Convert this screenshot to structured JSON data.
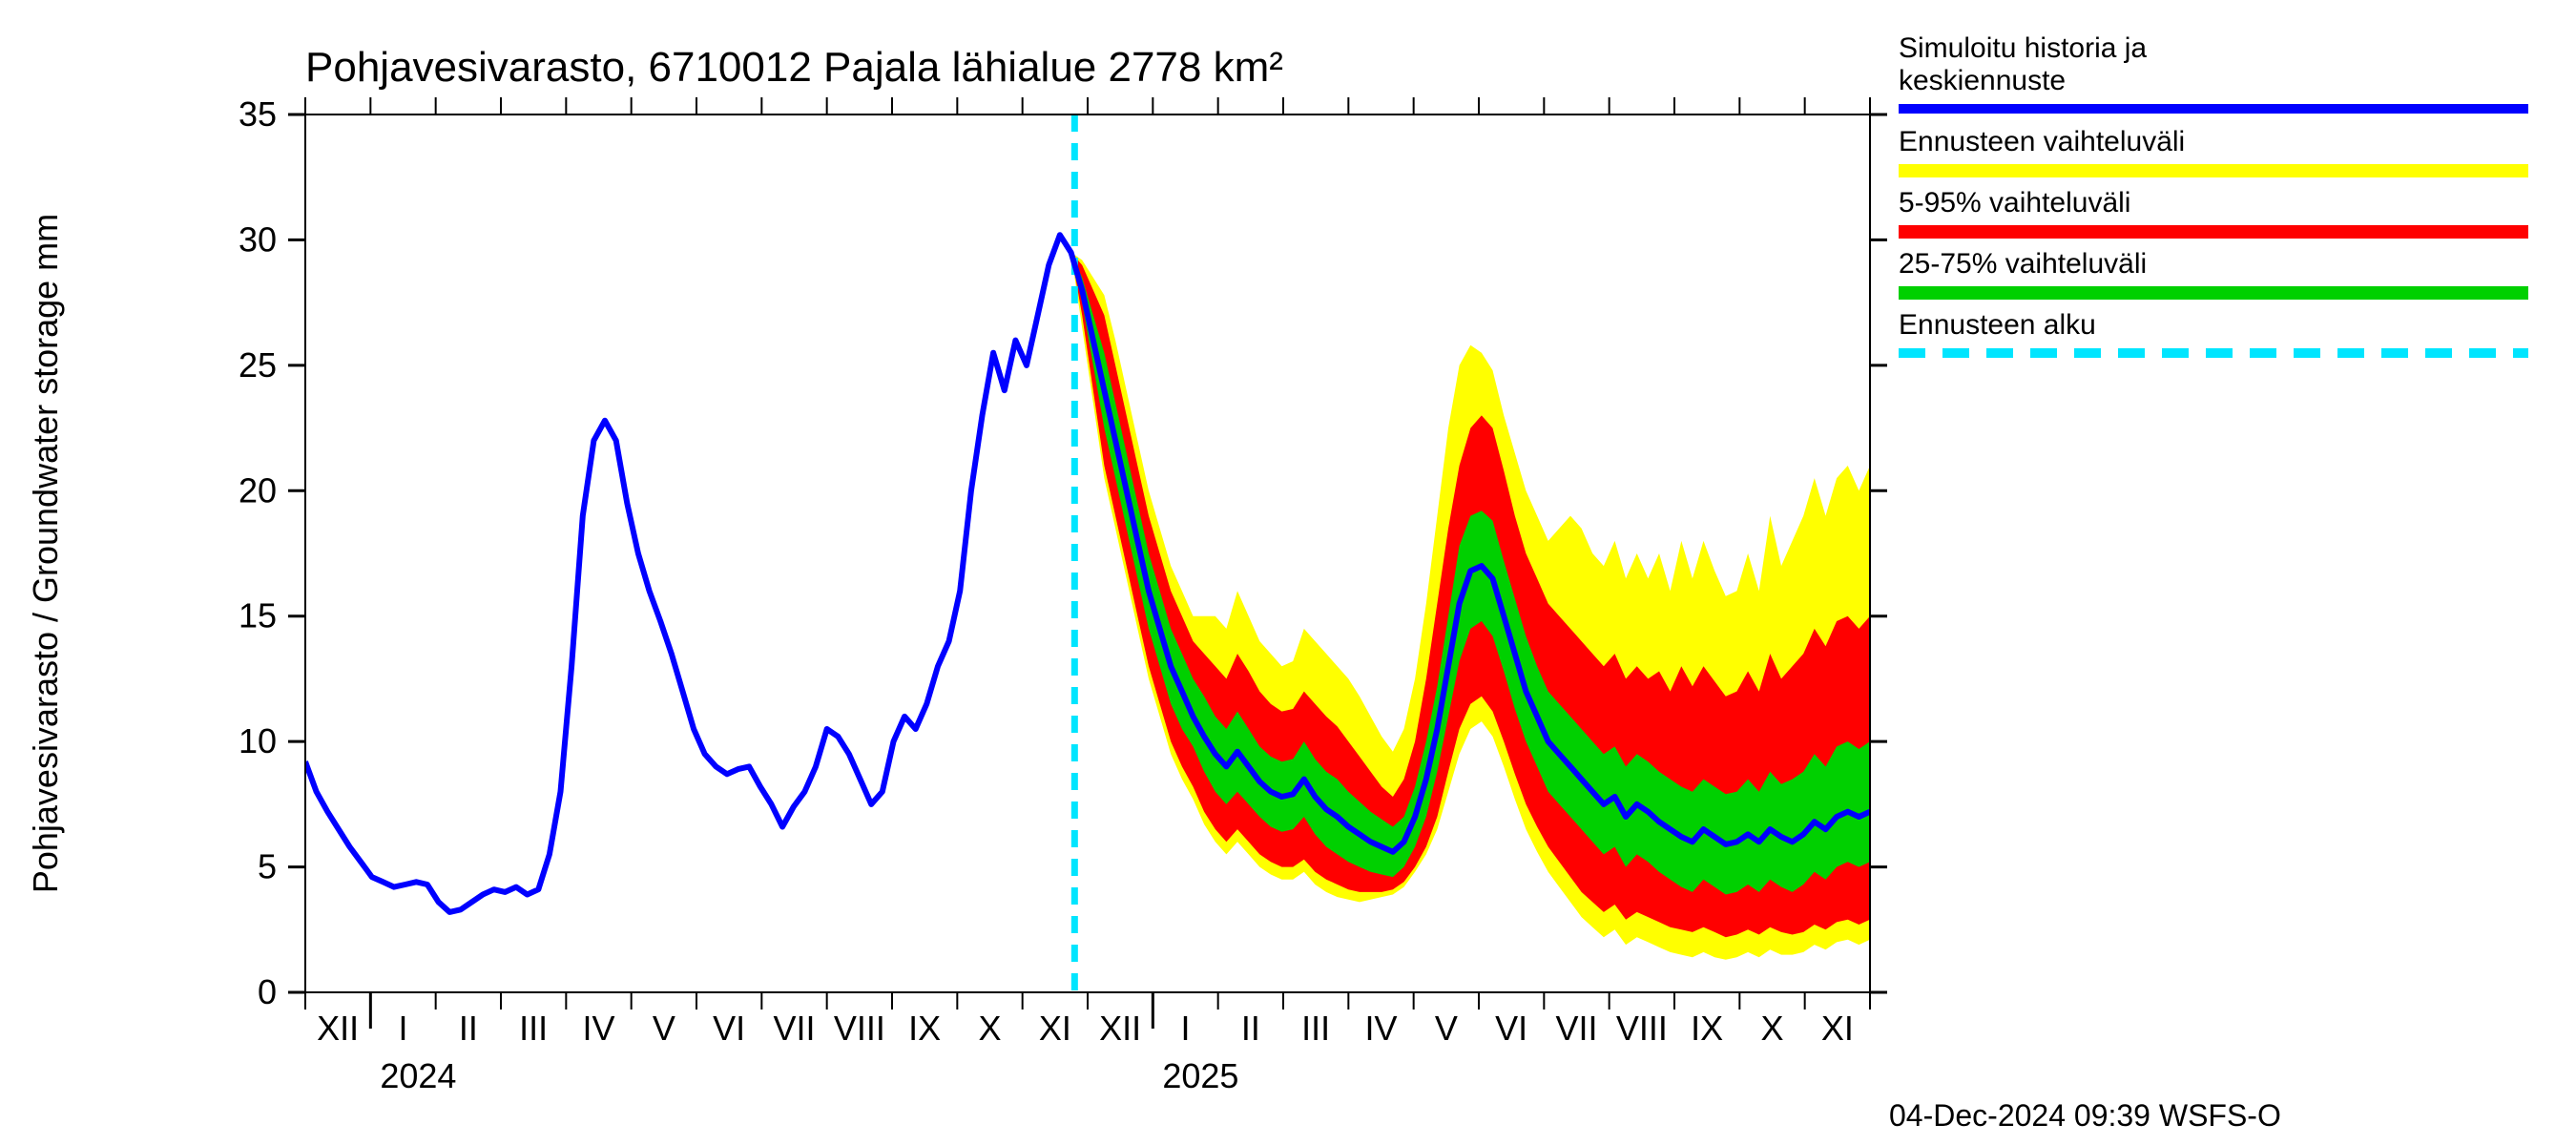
{
  "chart": {
    "type": "line-with-uncertainty-bands",
    "title": "Pohjavesivarasto, 6710012 Pajala lähialue 2778 km²",
    "title_fontsize": 44,
    "y_axis_label": "Pohjavesivarasto / Groundwater storage    mm",
    "y_axis_label_fontsize": 36,
    "background_color": "#ffffff",
    "axis_color": "#000000",
    "ylim": [
      0,
      35
    ],
    "ytick_step": 5,
    "ytick_labels": [
      "0",
      "5",
      "10",
      "15",
      "20",
      "25",
      "30",
      "35"
    ],
    "x_ticks": [
      "XII",
      "I",
      "II",
      "III",
      "IV",
      "V",
      "VI",
      "VII",
      "VIII",
      "IX",
      "X",
      "XI",
      "XII",
      "I",
      "II",
      "III",
      "IV",
      "V",
      "VI",
      "VII",
      "VIII",
      "IX",
      "X",
      "XI"
    ],
    "x_year_labels": [
      {
        "pos_index": 1,
        "text": "2024"
      },
      {
        "pos_index": 13,
        "text": "2025"
      }
    ],
    "colors": {
      "mean_line": "#0000ff",
      "full_range": "#ffff00",
      "p5_95": "#ff0000",
      "p25_75": "#00d000",
      "forecast_start": "#00e5ff"
    },
    "line_width_mean": 6,
    "forecast_start_index": 11.8,
    "forecast_dash": "18 12",
    "forecast_line_width": 7,
    "mean": [
      9.2,
      8.0,
      7.2,
      6.5,
      5.8,
      5.2,
      4.6,
      4.4,
      4.2,
      4.3,
      4.4,
      4.3,
      3.6,
      3.2,
      3.3,
      3.6,
      3.9,
      4.1,
      4.0,
      4.2,
      3.9,
      4.1,
      5.5,
      8.0,
      13.0,
      19.0,
      22.0,
      22.8,
      22.0,
      19.5,
      17.5,
      16.0,
      14.8,
      13.5,
      12.0,
      10.5,
      9.5,
      9.0,
      8.7,
      8.9,
      9.0,
      8.2,
      7.5,
      6.6,
      7.4,
      8.0,
      9.0,
      10.5,
      10.2,
      9.5,
      8.5,
      7.5,
      8.0,
      10.0,
      11.0,
      10.5,
      11.5,
      13.0,
      14.0,
      16.0,
      20.0,
      23.0,
      25.5,
      24.0,
      26.0,
      25.0,
      27.0,
      29.0,
      30.2,
      29.5,
      28.0,
      26.0,
      24.0,
      22.0,
      20.0,
      18.0,
      16.0,
      14.5,
      13.0,
      12.0,
      11.0,
      10.2,
      9.5,
      9.0,
      9.6,
      9.0,
      8.4,
      8.0,
      7.8,
      7.9,
      8.5,
      7.8,
      7.3,
      7.0,
      6.6,
      6.3,
      6.0,
      5.8,
      5.6,
      6.0,
      7.0,
      8.5,
      10.5,
      13.0,
      15.5,
      16.8,
      17.0,
      16.5,
      15.0,
      13.5,
      12.0,
      11.0,
      10.0,
      9.5,
      9.0,
      8.5,
      8.0,
      7.5,
      7.8,
      7.0,
      7.5,
      7.2,
      6.8,
      6.5,
      6.2,
      6.0,
      6.5,
      6.2,
      5.9,
      6.0,
      6.3,
      6.0,
      6.5,
      6.2,
      6.0,
      6.3,
      6.8,
      6.5,
      7.0,
      7.2,
      7.0,
      7.2
    ],
    "p25": [
      9.2,
      8.0,
      7.2,
      6.5,
      5.8,
      5.2,
      4.6,
      4.4,
      4.2,
      4.3,
      4.4,
      4.3,
      3.6,
      3.2,
      3.3,
      3.6,
      3.9,
      4.1,
      4.0,
      4.2,
      3.9,
      4.1,
      5.5,
      8.0,
      13.0,
      19.0,
      22.0,
      22.8,
      22.0,
      19.5,
      17.5,
      16.0,
      14.8,
      13.5,
      12.0,
      10.5,
      9.5,
      9.0,
      8.7,
      8.9,
      9.0,
      8.2,
      7.5,
      6.6,
      7.4,
      8.0,
      9.0,
      10.5,
      10.2,
      9.5,
      8.5,
      7.5,
      8.0,
      10.0,
      11.0,
      10.5,
      11.5,
      13.0,
      14.0,
      16.0,
      20.0,
      23.0,
      25.5,
      24.0,
      26.0,
      25.0,
      27.0,
      29.0,
      30.2,
      29.5,
      27.5,
      25.0,
      22.5,
      20.5,
      18.5,
      16.5,
      14.5,
      13.0,
      11.5,
      10.5,
      9.8,
      8.8,
      8.0,
      7.5,
      8.0,
      7.5,
      7.0,
      6.6,
      6.4,
      6.5,
      7.0,
      6.3,
      5.8,
      5.5,
      5.2,
      5.0,
      4.8,
      4.7,
      4.6,
      5.0,
      5.8,
      7.0,
      8.8,
      11.0,
      13.2,
      14.5,
      14.8,
      14.2,
      12.8,
      11.3,
      10.0,
      9.0,
      8.0,
      7.5,
      7.0,
      6.5,
      6.0,
      5.5,
      5.8,
      5.0,
      5.5,
      5.2,
      4.8,
      4.5,
      4.2,
      4.0,
      4.5,
      4.2,
      3.9,
      4.0,
      4.3,
      4.0,
      4.5,
      4.2,
      4.0,
      4.3,
      4.8,
      4.5,
      5.0,
      5.2,
      5.0,
      5.2
    ],
    "p75": [
      9.2,
      8.0,
      7.2,
      6.5,
      5.8,
      5.2,
      4.6,
      4.4,
      4.2,
      4.3,
      4.4,
      4.3,
      3.6,
      3.2,
      3.3,
      3.6,
      3.9,
      4.1,
      4.0,
      4.2,
      3.9,
      4.1,
      5.5,
      8.0,
      13.0,
      19.0,
      22.0,
      22.8,
      22.0,
      19.5,
      17.5,
      16.0,
      14.8,
      13.5,
      12.0,
      10.5,
      9.5,
      9.0,
      8.7,
      8.9,
      9.0,
      8.2,
      7.5,
      6.6,
      7.4,
      8.0,
      9.0,
      10.5,
      10.2,
      9.5,
      8.5,
      7.5,
      8.0,
      10.0,
      11.0,
      10.5,
      11.5,
      13.0,
      14.0,
      16.0,
      20.0,
      23.0,
      25.5,
      24.0,
      26.0,
      25.0,
      27.0,
      29.0,
      30.2,
      29.5,
      28.5,
      27.0,
      25.5,
      23.5,
      21.5,
      19.5,
      17.5,
      16.0,
      14.5,
      13.5,
      12.5,
      11.8,
      11.0,
      10.5,
      11.2,
      10.5,
      9.8,
      9.4,
      9.2,
      9.3,
      10.0,
      9.3,
      8.8,
      8.5,
      8.0,
      7.6,
      7.2,
      6.9,
      6.6,
      7.0,
      8.2,
      10.0,
      12.2,
      15.0,
      17.8,
      19.0,
      19.2,
      18.8,
      17.2,
      15.7,
      14.2,
      13.0,
      12.0,
      11.5,
      11.0,
      10.5,
      10.0,
      9.5,
      9.8,
      9.0,
      9.5,
      9.2,
      8.8,
      8.5,
      8.2,
      8.0,
      8.5,
      8.2,
      7.9,
      8.0,
      8.5,
      8.0,
      8.8,
      8.3,
      8.5,
      8.8,
      9.5,
      9.0,
      9.8,
      10.0,
      9.7,
      10.0
    ],
    "p5": [
      9.2,
      8.0,
      7.2,
      6.5,
      5.8,
      5.2,
      4.6,
      4.4,
      4.2,
      4.3,
      4.4,
      4.3,
      3.6,
      3.2,
      3.3,
      3.6,
      3.9,
      4.1,
      4.0,
      4.2,
      3.9,
      4.1,
      5.5,
      8.0,
      13.0,
      19.0,
      22.0,
      22.8,
      22.0,
      19.5,
      17.5,
      16.0,
      14.8,
      13.5,
      12.0,
      10.5,
      9.5,
      9.0,
      8.7,
      8.9,
      9.0,
      8.2,
      7.5,
      6.6,
      7.4,
      8.0,
      9.0,
      10.5,
      10.2,
      9.5,
      8.5,
      7.5,
      8.0,
      10.0,
      11.0,
      10.5,
      11.5,
      13.0,
      14.0,
      16.0,
      20.0,
      23.0,
      25.5,
      24.0,
      26.0,
      25.0,
      27.0,
      29.0,
      30.2,
      29.5,
      27.0,
      24.0,
      21.0,
      19.0,
      17.0,
      15.0,
      13.0,
      11.5,
      10.0,
      9.0,
      8.2,
      7.2,
      6.5,
      6.0,
      6.5,
      6.0,
      5.5,
      5.2,
      5.0,
      5.0,
      5.3,
      4.8,
      4.5,
      4.3,
      4.1,
      4.0,
      4.0,
      4.0,
      4.1,
      4.4,
      5.0,
      5.8,
      7.0,
      8.8,
      10.5,
      11.5,
      11.8,
      11.2,
      10.0,
      8.7,
      7.5,
      6.6,
      5.8,
      5.2,
      4.6,
      4.0,
      3.6,
      3.2,
      3.5,
      2.9,
      3.2,
      3.0,
      2.8,
      2.6,
      2.5,
      2.4,
      2.6,
      2.4,
      2.2,
      2.3,
      2.5,
      2.3,
      2.6,
      2.4,
      2.3,
      2.4,
      2.7,
      2.5,
      2.8,
      2.9,
      2.7,
      2.9
    ],
    "p95": [
      9.2,
      8.0,
      7.2,
      6.5,
      5.8,
      5.2,
      4.6,
      4.4,
      4.2,
      4.3,
      4.4,
      4.3,
      3.6,
      3.2,
      3.3,
      3.6,
      3.9,
      4.1,
      4.0,
      4.2,
      3.9,
      4.1,
      5.5,
      8.0,
      13.0,
      19.0,
      22.0,
      22.8,
      22.0,
      19.5,
      17.5,
      16.0,
      14.8,
      13.5,
      12.0,
      10.5,
      9.5,
      9.0,
      8.7,
      8.9,
      9.0,
      8.2,
      7.5,
      6.6,
      7.4,
      8.0,
      9.0,
      10.5,
      10.2,
      9.5,
      8.5,
      7.5,
      8.0,
      10.0,
      11.0,
      10.5,
      11.5,
      13.0,
      14.0,
      16.0,
      20.0,
      23.0,
      25.5,
      24.0,
      26.0,
      25.0,
      27.0,
      29.0,
      30.2,
      29.5,
      29.0,
      28.0,
      27.0,
      25.0,
      23.0,
      21.0,
      19.0,
      17.5,
      16.0,
      15.0,
      14.0,
      13.5,
      13.0,
      12.5,
      13.5,
      12.8,
      12.0,
      11.5,
      11.2,
      11.3,
      12.0,
      11.5,
      11.0,
      10.6,
      10.0,
      9.4,
      8.8,
      8.2,
      7.8,
      8.5,
      10.0,
      12.5,
      15.5,
      18.5,
      21.0,
      22.5,
      23.0,
      22.5,
      20.8,
      19.0,
      17.5,
      16.5,
      15.5,
      15.0,
      14.5,
      14.0,
      13.5,
      13.0,
      13.5,
      12.5,
      13.0,
      12.5,
      12.8,
      12.0,
      13.0,
      12.2,
      13.0,
      12.4,
      11.8,
      12.0,
      12.8,
      12.0,
      13.5,
      12.5,
      13.0,
      13.5,
      14.5,
      13.8,
      14.8,
      15.0,
      14.5,
      15.0
    ],
    "full_lo": [
      9.2,
      8.0,
      7.2,
      6.5,
      5.8,
      5.2,
      4.6,
      4.4,
      4.2,
      4.3,
      4.4,
      4.3,
      3.6,
      3.2,
      3.3,
      3.6,
      3.9,
      4.1,
      4.0,
      4.2,
      3.9,
      4.1,
      5.5,
      8.0,
      13.0,
      19.0,
      22.0,
      22.8,
      22.0,
      19.5,
      17.5,
      16.0,
      14.8,
      13.5,
      12.0,
      10.5,
      9.5,
      9.0,
      8.7,
      8.9,
      9.0,
      8.2,
      7.5,
      6.6,
      7.4,
      8.0,
      9.0,
      10.5,
      10.2,
      9.5,
      8.5,
      7.5,
      8.0,
      10.0,
      11.0,
      10.5,
      11.5,
      13.0,
      14.0,
      16.0,
      20.0,
      23.0,
      25.5,
      24.0,
      26.0,
      25.0,
      27.0,
      29.0,
      30.2,
      29.5,
      26.5,
      23.5,
      20.5,
      18.5,
      16.5,
      14.5,
      12.5,
      11.0,
      9.5,
      8.5,
      7.7,
      6.7,
      6.0,
      5.5,
      6.0,
      5.5,
      5.0,
      4.7,
      4.5,
      4.5,
      4.8,
      4.3,
      4.0,
      3.8,
      3.7,
      3.6,
      3.7,
      3.8,
      3.9,
      4.2,
      4.8,
      5.5,
      6.5,
      8.0,
      9.5,
      10.5,
      10.8,
      10.2,
      9.0,
      7.7,
      6.5,
      5.6,
      4.8,
      4.2,
      3.6,
      3.0,
      2.6,
      2.2,
      2.5,
      1.9,
      2.2,
      2.0,
      1.8,
      1.6,
      1.5,
      1.4,
      1.6,
      1.4,
      1.3,
      1.4,
      1.6,
      1.4,
      1.7,
      1.5,
      1.5,
      1.6,
      1.9,
      1.7,
      2.0,
      2.1,
      1.9,
      2.1
    ],
    "full_hi": [
      9.2,
      8.0,
      7.2,
      6.5,
      5.8,
      5.2,
      4.6,
      4.4,
      4.2,
      4.3,
      4.4,
      4.3,
      3.6,
      3.2,
      3.3,
      3.6,
      3.9,
      4.1,
      4.0,
      4.2,
      3.9,
      4.1,
      5.5,
      8.0,
      13.0,
      19.0,
      22.0,
      22.8,
      22.0,
      19.5,
      17.5,
      16.0,
      14.8,
      13.5,
      12.0,
      10.5,
      9.5,
      9.0,
      8.7,
      8.9,
      9.0,
      8.2,
      7.5,
      6.6,
      7.4,
      8.0,
      9.0,
      10.5,
      10.2,
      9.5,
      8.5,
      7.5,
      8.0,
      10.0,
      11.0,
      10.5,
      11.5,
      13.0,
      14.0,
      16.0,
      20.0,
      23.0,
      25.5,
      24.0,
      26.0,
      25.0,
      27.0,
      29.0,
      30.2,
      29.5,
      29.2,
      28.5,
      27.8,
      26.0,
      24.0,
      22.0,
      20.0,
      18.5,
      17.0,
      16.0,
      15.0,
      15.0,
      15.0,
      14.5,
      16.0,
      15.0,
      14.0,
      13.5,
      13.0,
      13.2,
      14.5,
      14.0,
      13.5,
      13.0,
      12.5,
      11.8,
      11.0,
      10.2,
      9.6,
      10.5,
      12.5,
      15.5,
      19.0,
      22.5,
      25.0,
      25.8,
      25.5,
      24.8,
      23.0,
      21.5,
      20.0,
      19.0,
      18.0,
      18.5,
      19.0,
      18.5,
      17.5,
      17.0,
      18.0,
      16.5,
      17.5,
      16.5,
      17.5,
      16.0,
      18.0,
      16.5,
      18.0,
      16.8,
      15.8,
      16.0,
      17.5,
      16.0,
      19.0,
      17.0,
      18.0,
      19.0,
      20.5,
      19.0,
      20.5,
      21.0,
      20.0,
      21.0
    ]
  },
  "legend": {
    "items": [
      {
        "label_line1": "Simuloitu historia ja",
        "label_line2": "keskiennuste",
        "color": "#0000ff",
        "type": "line"
      },
      {
        "label_line1": "Ennusteen vaihteluväli",
        "label_line2": "",
        "color": "#ffff00",
        "type": "band"
      },
      {
        "label_line1": "5-95% vaihteluväli",
        "label_line2": "",
        "color": "#ff0000",
        "type": "band"
      },
      {
        "label_line1": "25-75% vaihteluväli",
        "label_line2": "",
        "color": "#00d000",
        "type": "band"
      },
      {
        "label_line1": "Ennusteen alku",
        "label_line2": "",
        "color": "#00e5ff",
        "type": "dashed"
      }
    ]
  },
  "timestamp": "04-Dec-2024 09:39 WSFS-O"
}
